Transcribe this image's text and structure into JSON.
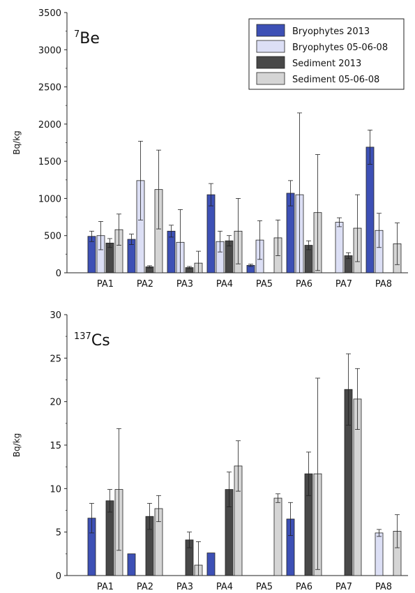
{
  "chart_data": [
    {
      "type": "bar",
      "panel_label_sup": "7",
      "panel_label": "Be",
      "ylabel": "Bq/kg",
      "xlabel": "",
      "ylim": [
        0,
        3500
      ],
      "yticks": [
        "0",
        "500",
        "1000",
        "1500",
        "2000",
        "2500",
        "3000",
        "3500"
      ],
      "categories": [
        "PA1",
        "PA2",
        "PA3",
        "PA4",
        "PA5",
        "PA6",
        "PA7",
        "PA8"
      ],
      "legend_position": "top-right",
      "series": [
        {
          "name": "Bryophytes 2013",
          "color": "#3d50b5",
          "values": [
            490,
            450,
            560,
            1050,
            100,
            1070,
            null,
            1690
          ],
          "errors": [
            70,
            70,
            80,
            150,
            15,
            170,
            null,
            230
          ]
        },
        {
          "name": "Bryophytes 05-06-08",
          "color": "#dcdff5",
          "values": [
            500,
            1240,
            410,
            420,
            440,
            1050,
            680,
            570
          ],
          "errors": [
            190,
            530,
            440,
            140,
            260,
            1100,
            60,
            230
          ]
        },
        {
          "name": "Sediment 2013",
          "color": "#484848",
          "values": [
            400,
            80,
            70,
            430,
            0,
            370,
            230,
            0
          ],
          "errors": [
            60,
            15,
            15,
            70,
            null,
            60,
            40,
            null
          ]
        },
        {
          "name": "Sediment 05-06-08",
          "color": "#d5d5d5",
          "values": [
            580,
            1120,
            130,
            560,
            470,
            810,
            600,
            390
          ],
          "errors": [
            210,
            530,
            160,
            440,
            240,
            780,
            450,
            280
          ]
        }
      ]
    },
    {
      "type": "bar",
      "panel_label_sup": "137",
      "panel_label": "Cs",
      "ylabel": "Bq/kg",
      "xlabel": "",
      "ylim": [
        0,
        30
      ],
      "yticks": [
        "0",
        "5",
        "10",
        "15",
        "20",
        "25",
        "30"
      ],
      "categories": [
        "PA1",
        "PA2",
        "PA3",
        "PA4",
        "PA5",
        "PA6",
        "PA7",
        "PA8"
      ],
      "series": [
        {
          "name": "Bryophytes 2013",
          "color": "#3d50b5",
          "values": [
            6.6,
            2.5,
            null,
            2.6,
            null,
            6.5,
            null,
            null
          ],
          "errors": [
            1.7,
            null,
            null,
            null,
            null,
            1.9,
            null,
            null
          ]
        },
        {
          "name": "Bryophytes 05-06-08",
          "color": "#dcdff5",
          "values": [
            null,
            null,
            null,
            null,
            null,
            null,
            null,
            4.9
          ],
          "errors": [
            null,
            null,
            null,
            null,
            null,
            null,
            null,
            0.4
          ]
        },
        {
          "name": "Sediment 2013",
          "color": "#484848",
          "values": [
            8.6,
            6.8,
            4.1,
            9.9,
            null,
            11.7,
            21.4,
            null
          ],
          "errors": [
            1.3,
            1.5,
            0.9,
            2.0,
            null,
            2.5,
            4.1,
            null
          ]
        },
        {
          "name": "Sediment 05-06-08",
          "color": "#d5d5d5",
          "values": [
            9.9,
            7.7,
            1.2,
            12.6,
            8.9,
            11.7,
            20.3,
            5.1
          ],
          "errors": [
            7.0,
            1.5,
            2.7,
            2.9,
            0.5,
            11.0,
            3.5,
            1.9
          ]
        }
      ]
    }
  ]
}
